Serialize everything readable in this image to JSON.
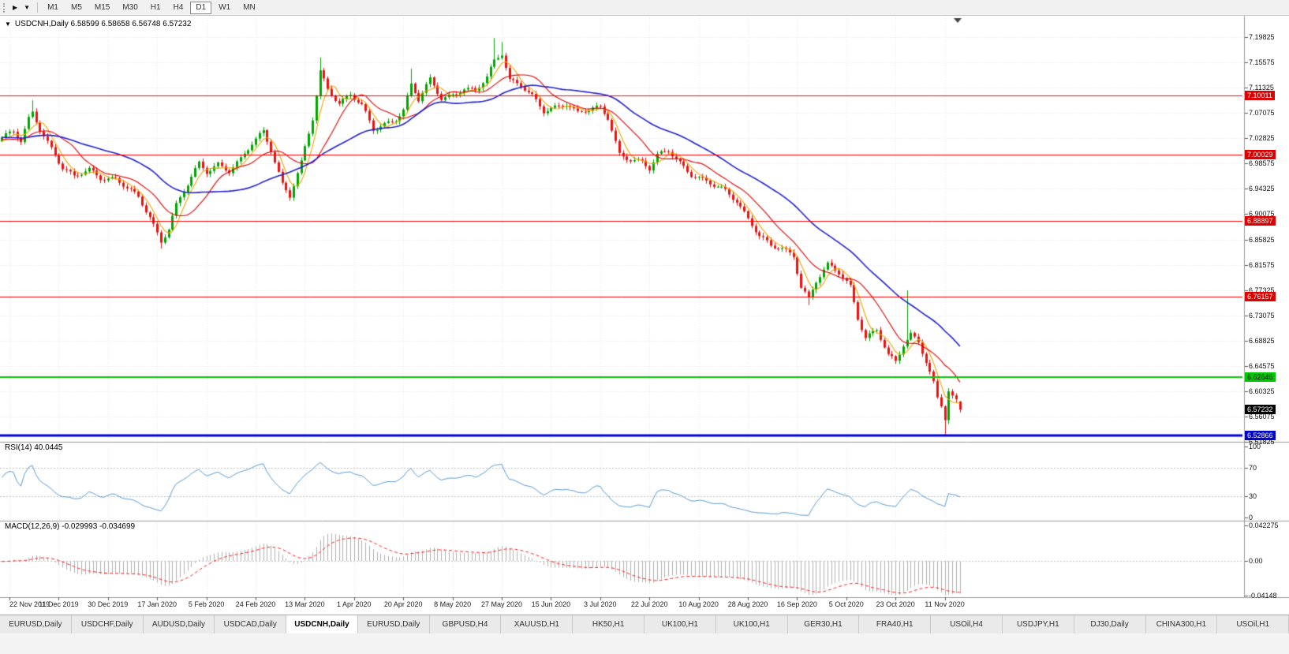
{
  "toolbar": {
    "forward_button": "▶",
    "dropdown_button": "▼",
    "timeframes": [
      "M1",
      "M5",
      "M15",
      "M30",
      "H1",
      "H4",
      "D1",
      "W1",
      "MN"
    ],
    "active_timeframe": "D1"
  },
  "chart_data": {
    "type": "candlestick",
    "symbol": "USDCNH",
    "timeframe": "Daily",
    "quote_line": "USDCNH,Daily 6.58599 6.58658 6.56748 6.57232",
    "quote": {
      "open": "6.58599",
      "high": "6.58658",
      "low": "6.56748",
      "close": "6.57232"
    },
    "y_ticks": [
      "7.19825",
      "7.15575",
      "7.11325",
      "7.07075",
      "7.02825",
      "6.98575",
      "6.94325",
      "6.90075",
      "6.85825",
      "6.81575",
      "6.77325",
      "6.73075",
      "6.68825",
      "6.64575",
      "6.60325",
      "6.56075",
      "6.51825"
    ],
    "y_range": [
      6.51825,
      7.19825
    ],
    "x_labels": [
      "22 Nov 2019",
      "11 Dec 2019",
      "30 Dec 2019",
      "17 Jan 2020",
      "5 Feb 2020",
      "24 Feb 2020",
      "13 Mar 2020",
      "1 Apr 2020",
      "20 Apr 2020",
      "8 May 2020",
      "27 May 2020",
      "15 Jun 2020",
      "3 Jul 2020",
      "22 Jul 2020",
      "10 Aug 2020",
      "28 Aug 2020",
      "16 Sep 2020",
      "5 Oct 2020",
      "23 Oct 2020",
      "11 Nov 2020"
    ],
    "visible_candles": 254,
    "candle_colors": {
      "bull": "#00A600",
      "bear": "#ED1111"
    },
    "price_anchors": [
      [
        0,
        7.03
      ],
      [
        3,
        7.038
      ],
      [
        5,
        7.022
      ],
      [
        7,
        7.06
      ],
      [
        8,
        7.072
      ],
      [
        10,
        7.045
      ],
      [
        13,
        7.012
      ],
      [
        16,
        6.978
      ],
      [
        19,
        6.962
      ],
      [
        23,
        6.976
      ],
      [
        26,
        6.963
      ],
      [
        30,
        6.96
      ],
      [
        33,
        6.944
      ],
      [
        36,
        6.928
      ],
      [
        39,
        6.896
      ],
      [
        42,
        6.856
      ],
      [
        44,
        6.878
      ],
      [
        46,
        6.916
      ],
      [
        49,
        6.95
      ],
      [
        52,
        6.985
      ],
      [
        54,
        6.972
      ],
      [
        57,
        6.986
      ],
      [
        60,
        6.974
      ],
      [
        63,
        6.992
      ],
      [
        66,
        7.018
      ],
      [
        69,
        7.04
      ],
      [
        71,
        7.01
      ],
      [
        74,
        6.952
      ],
      [
        76,
        6.932
      ],
      [
        79,
        6.986
      ],
      [
        82,
        7.06
      ],
      [
        84,
        7.14
      ],
      [
        86,
        7.112
      ],
      [
        89,
        7.088
      ],
      [
        92,
        7.102
      ],
      [
        95,
        7.082
      ],
      [
        98,
        7.042
      ],
      [
        101,
        7.052
      ],
      [
        104,
        7.062
      ],
      [
        106,
        7.076
      ],
      [
        108,
        7.118
      ],
      [
        110,
        7.092
      ],
      [
        113,
        7.126
      ],
      [
        116,
        7.096
      ],
      [
        119,
        7.102
      ],
      [
        122,
        7.112
      ],
      [
        125,
        7.106
      ],
      [
        128,
        7.13
      ],
      [
        130,
        7.158
      ],
      [
        132,
        7.172
      ],
      [
        134,
        7.128
      ],
      [
        137,
        7.118
      ],
      [
        140,
        7.098
      ],
      [
        143,
        7.072
      ],
      [
        146,
        7.08
      ],
      [
        149,
        7.088
      ],
      [
        152,
        7.072
      ],
      [
        155,
        7.076
      ],
      [
        158,
        7.078
      ],
      [
        160,
        7.062
      ],
      [
        163,
        7.002
      ],
      [
        166,
        6.994
      ],
      [
        169,
        6.988
      ],
      [
        171,
        6.976
      ],
      [
        173,
        6.998
      ],
      [
        176,
        7.008
      ],
      [
        179,
        6.988
      ],
      [
        182,
        6.968
      ],
      [
        185,
        6.958
      ],
      [
        188,
        6.948
      ],
      [
        191,
        6.94
      ],
      [
        194,
        6.924
      ],
      [
        197,
        6.894
      ],
      [
        200,
        6.864
      ],
      [
        203,
        6.846
      ],
      [
        206,
        6.842
      ],
      [
        209,
        6.832
      ],
      [
        211,
        6.78
      ],
      [
        213,
        6.76
      ],
      [
        215,
        6.788
      ],
      [
        218,
        6.814
      ],
      [
        221,
        6.802
      ],
      [
        224,
        6.78
      ],
      [
        226,
        6.728
      ],
      [
        228,
        6.694
      ],
      [
        231,
        6.706
      ],
      [
        234,
        6.662
      ],
      [
        236,
        6.652
      ],
      [
        238,
        6.682
      ],
      [
        240,
        6.7
      ],
      [
        242,
        6.688
      ],
      [
        244,
        6.654
      ],
      [
        246,
        6.616
      ],
      [
        247,
        6.59
      ],
      [
        248,
        6.578
      ],
      [
        249,
        6.556
      ],
      [
        250,
        6.602
      ],
      [
        251,
        6.592
      ],
      [
        252,
        6.586
      ],
      [
        253,
        6.5723
      ]
    ],
    "wick_overrides": {
      "8": {
        "h": 7.092
      },
      "42": {
        "l": 6.843
      },
      "84": {
        "h": 7.164
      },
      "108": {
        "h": 7.145
      },
      "130": {
        "h": 7.1965
      },
      "132": {
        "h": 7.19
      },
      "213": {
        "l": 6.748
      },
      "239": {
        "h": 6.7726
      },
      "249": {
        "l": 6.5287
      },
      "250": {
        "l": 6.548
      },
      "253": {
        "o": 6.58599,
        "h": 6.58658,
        "l": 6.56748,
        "c": 6.57232
      }
    },
    "levels": [
      {
        "name": "resistance-1",
        "label": "7.10011",
        "price": 7.10011,
        "line_color": "#FF0000",
        "line_width": 1,
        "bg": "#DC0000",
        "fg": "#FFFFFF"
      },
      {
        "name": "resistance-2",
        "label": "7.00029",
        "price": 7.00029,
        "line_color": "#FF0000",
        "line_width": 1,
        "bg": "#DC0000",
        "fg": "#FFFFFF"
      },
      {
        "name": "resistance-3",
        "label": "6.88897",
        "price": 6.88897,
        "line_color": "#FF0000",
        "line_width": 1,
        "bg": "#DC0000",
        "fg": "#FFFFFF"
      },
      {
        "name": "resistance-4",
        "label": "6.76157",
        "price": 6.76157,
        "line_color": "#FF0000",
        "line_width": 1,
        "bg": "#DC0000",
        "fg": "#FFFFFF"
      },
      {
        "name": "support-green",
        "label": "6.62646",
        "price": 6.62646,
        "line_color": "#00CE00",
        "line_width": 2,
        "bg": "#00C800",
        "fg": "#000000"
      },
      {
        "name": "support-blue",
        "label": "6.52866",
        "price": 6.52866,
        "line_color": "#0000DC",
        "line_width": 3,
        "bg": "#0000C8",
        "fg": "#FFFFFF"
      }
    ],
    "current_price": {
      "label": "6.57232",
      "price": 6.57232,
      "bg": "#000000",
      "fg": "#FFFFFF"
    },
    "moving_averages": [
      {
        "period": 5,
        "color": "#F0A500"
      },
      {
        "period": 13,
        "color": "#E00000"
      },
      {
        "period": 34,
        "color": "#2222CC"
      }
    ],
    "rsi": {
      "label": "RSI(14) 40.0445",
      "period": 14,
      "current": 40.0445,
      "axis_ticks": [
        "100",
        "70",
        "30",
        "0"
      ],
      "levels": [
        70,
        30
      ],
      "line_color": "#5B9BD5"
    },
    "macd": {
      "label": "MACD(12,26,9) -0.029993 -0.034699",
      "fast": 12,
      "slow": 26,
      "signal": 9,
      "current_macd": -0.029993,
      "current_signal": -0.034699,
      "axis_ticks": [
        "0.042275",
        "0.00",
        "-0.04148"
      ],
      "histogram_color": "#B0B0B0",
      "signal_color": "#FF2020"
    }
  },
  "tabs": {
    "items": [
      {
        "label": "EURUSD,Daily",
        "active": false
      },
      {
        "label": "USDCHF,Daily",
        "active": false
      },
      {
        "label": "AUDUSD,Daily",
        "active": false
      },
      {
        "label": "USDCAD,Daily",
        "active": false
      },
      {
        "label": "USDCNH,Daily",
        "active": true
      },
      {
        "label": "EURUSD,Daily",
        "active": false
      },
      {
        "label": "GBPUSD,H4",
        "active": false
      },
      {
        "label": "XAUUSD,H1",
        "active": false
      },
      {
        "label": "HK50,H1",
        "active": false
      },
      {
        "label": "UK100,H1",
        "active": false
      },
      {
        "label": "UK100,H1",
        "active": false
      },
      {
        "label": "GER30,H1",
        "active": false
      },
      {
        "label": "FRA40,H1",
        "active": false
      },
      {
        "label": "USOil,H4",
        "active": false
      },
      {
        "label": "USDJPY,H1",
        "active": false
      },
      {
        "label": "DJ30,Daily",
        "active": false
      },
      {
        "label": "CHINA300,H1",
        "active": false
      },
      {
        "label": "USOil,H1",
        "active": false
      }
    ]
  }
}
